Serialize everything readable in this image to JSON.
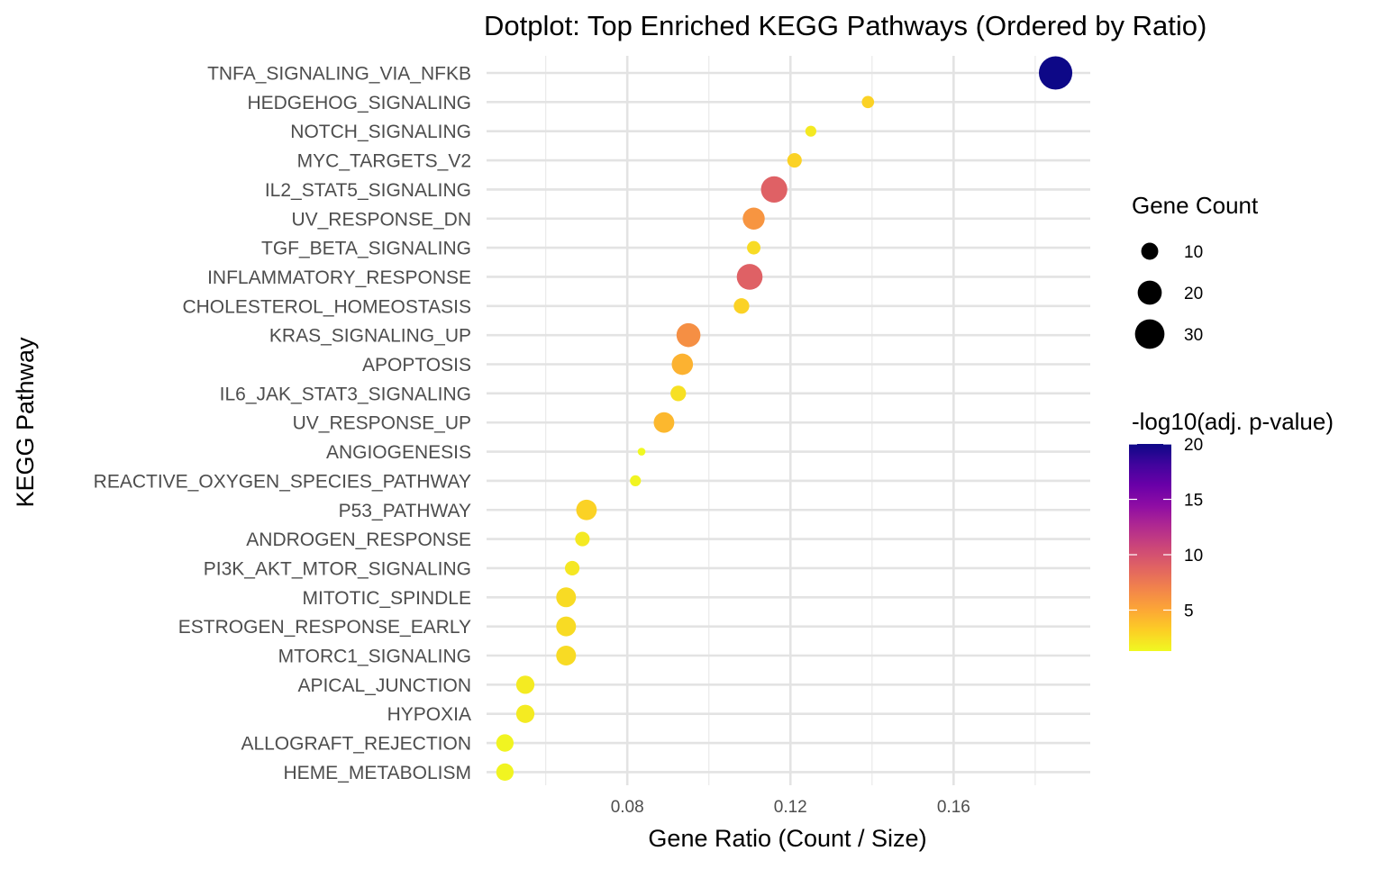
{
  "chart_data": {
    "type": "scatter",
    "title": "Dotplot: Top Enriched KEGG Pathways (Ordered by Ratio)",
    "xlabel": "Gene Ratio (Count / Size)",
    "ylabel": "KEGG Pathway",
    "xlim": [
      0.0455,
      0.1935
    ],
    "xticks": [
      0.08,
      0.12,
      0.16
    ],
    "xtick_labels": [
      "0.08",
      "0.12",
      "0.16"
    ],
    "grid": true,
    "colormap": "plasma",
    "size_legend": {
      "title": "Gene Count",
      "values": [
        10,
        20,
        30
      ],
      "labels": [
        "10",
        "20",
        "30"
      ]
    },
    "color_legend": {
      "title": "-log10(adj. p-value)",
      "range": [
        1.3,
        20
      ],
      "ticks": [
        5,
        10,
        15,
        20
      ],
      "tick_labels": [
        "5",
        "10",
        "15",
        "20"
      ]
    },
    "categories": [
      "TNFA_SIGNALING_VIA_NFKB",
      "HEDGEHOG_SIGNALING",
      "NOTCH_SIGNALING",
      "MYC_TARGETS_V2",
      "IL2_STAT5_SIGNALING",
      "UV_RESPONSE_DN",
      "TGF_BETA_SIGNALING",
      "INFLAMMATORY_RESPONSE",
      "CHOLESTEROL_HOMEOSTASIS",
      "KRAS_SIGNALING_UP",
      "APOPTOSIS",
      "IL6_JAK_STAT3_SIGNALING",
      "UV_RESPONSE_UP",
      "ANGIOGENESIS",
      "REACTIVE_OXYGEN_SPECIES_PATHWAY",
      "P53_PATHWAY",
      "ANDROGEN_RESPONSE",
      "PI3K_AKT_MTOR_SIGNALING",
      "MITOTIC_SPINDLE",
      "ESTROGEN_RESPONSE_EARLY",
      "MTORC1_SIGNALING",
      "APICAL_JUNCTION",
      "HYPOXIA",
      "ALLOGRAFT_REJECTION",
      "HEME_METABOLISM"
    ],
    "points": [
      {
        "pathway": "TNFA_SIGNALING_VIA_NFKB",
        "ratio": 0.185,
        "count": 37,
        "neglog10p": 20.0
      },
      {
        "pathway": "HEDGEHOG_SIGNALING",
        "ratio": 0.139,
        "count": 5,
        "neglog10p": 3.0
      },
      {
        "pathway": "NOTCH_SIGNALING",
        "ratio": 0.125,
        "count": 4,
        "neglog10p": 2.0
      },
      {
        "pathway": "MYC_TARGETS_V2",
        "ratio": 0.121,
        "count": 7,
        "neglog10p": 3.0
      },
      {
        "pathway": "IL2_STAT5_SIGNALING",
        "ratio": 0.116,
        "count": 23,
        "neglog10p": 9.0
      },
      {
        "pathway": "UV_RESPONSE_DN",
        "ratio": 0.111,
        "count": 16,
        "neglog10p": 6.0
      },
      {
        "pathway": "TGF_BETA_SIGNALING",
        "ratio": 0.111,
        "count": 6,
        "neglog10p": 2.6
      },
      {
        "pathway": "INFLAMMATORY_RESPONSE",
        "ratio": 0.11,
        "count": 22,
        "neglog10p": 9.0
      },
      {
        "pathway": "CHOLESTEROL_HOMEOSTASIS",
        "ratio": 0.108,
        "count": 8,
        "neglog10p": 3.0
      },
      {
        "pathway": "KRAS_SIGNALING_UP",
        "ratio": 0.095,
        "count": 19,
        "neglog10p": 6.3
      },
      {
        "pathway": "APOPTOSIS",
        "ratio": 0.0935,
        "count": 15,
        "neglog10p": 4.5
      },
      {
        "pathway": "IL6_JAK_STAT3_SIGNALING",
        "ratio": 0.0925,
        "count": 8,
        "neglog10p": 2.4
      },
      {
        "pathway": "UV_RESPONSE_UP",
        "ratio": 0.089,
        "count": 14,
        "neglog10p": 4.2
      },
      {
        "pathway": "ANGIOGENESIS",
        "ratio": 0.0835,
        "count": 2,
        "neglog10p": 1.3
      },
      {
        "pathway": "REACTIVE_OXYGEN_SPECIES_PATHWAY",
        "ratio": 0.082,
        "count": 4,
        "neglog10p": 1.5
      },
      {
        "pathway": "P53_PATHWAY",
        "ratio": 0.07,
        "count": 14,
        "neglog10p": 3.0
      },
      {
        "pathway": "ANDROGEN_RESPONSE",
        "ratio": 0.069,
        "count": 7,
        "neglog10p": 2.0
      },
      {
        "pathway": "PI3K_AKT_MTOR_SIGNALING",
        "ratio": 0.0665,
        "count": 7,
        "neglog10p": 2.1
      },
      {
        "pathway": "MITOTIC_SPINDLE",
        "ratio": 0.065,
        "count": 13,
        "neglog10p": 2.6
      },
      {
        "pathway": "ESTROGEN_RESPONSE_EARLY",
        "ratio": 0.065,
        "count": 13,
        "neglog10p": 2.6
      },
      {
        "pathway": "MTORC1_SIGNALING",
        "ratio": 0.065,
        "count": 13,
        "neglog10p": 2.6
      },
      {
        "pathway": "APICAL_JUNCTION",
        "ratio": 0.055,
        "count": 11,
        "neglog10p": 1.9
      },
      {
        "pathway": "HYPOXIA",
        "ratio": 0.055,
        "count": 11,
        "neglog10p": 1.9
      },
      {
        "pathway": "ALLOGRAFT_REJECTION",
        "ratio": 0.05,
        "count": 10,
        "neglog10p": 1.5
      },
      {
        "pathway": "HEME_METABOLISM",
        "ratio": 0.05,
        "count": 10,
        "neglog10p": 1.5
      }
    ]
  }
}
